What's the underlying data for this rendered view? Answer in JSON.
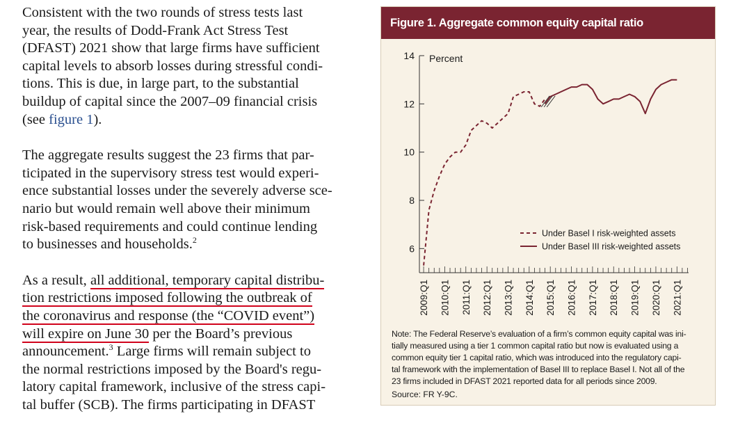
{
  "body_text": {
    "p1": [
      "Consistent with the two rounds of stress tests last",
      "year, the results of Dodd-Frank Act Stress Test",
      "(DFAST) 2021 show that large firms have sufficient",
      "capital levels to absorb losses during stressful condi-",
      "tions. This is due, in large part, to the substantial",
      "buildup of capital since the 2007–09 financial crisis"
    ],
    "p1_last_pre": "(see ",
    "p1_link": "figure 1",
    "p1_last_post": ").",
    "p2": [
      "The aggregate results suggest the 23 firms that par-",
      "ticipated in the supervisory stress test would experi-",
      "ence substantial losses under the severely adverse sce-",
      "nario but would remain well above their minimum",
      "risk-based requirements and could continue lending"
    ],
    "p2_last": "to businesses and households.",
    "p2_footnote": "2",
    "p3_l1_pre": "As a result, ",
    "p3_l1_ul": "all additional, temporary capital distribu-",
    "p3_l2_ul": "tion restrictions imposed following the outbreak of",
    "p3_l3_ul": "the coronavirus and response (the “COVID event”)",
    "p3_l4_ul": "will expire on June 30",
    "p3_l4_post": " per the Board’s previous",
    "p3_l5_pre": "announcement.",
    "p3_footnote": "3",
    "p3_l5_post": " Large firms will remain subject to",
    "p3_rest": [
      "the normal restrictions imposed by the Board's regu-",
      "latory capital framework, inclusive of the stress capi-",
      "tal buffer (SCB). The firms participating in DFAST"
    ]
  },
  "figure": {
    "title": "Figure 1. Aggregate common equity capital ratio",
    "note_lines": [
      "Note: The Federal Reserve’s evaluation of a firm’s common equity capital was ini-",
      "tially measured using a tier 1 common capital ratio but now is evaluated using a",
      "common equity tier 1 capital ratio, which was introduced into the regulatory capi-",
      "tal framework with the implementation of Basel III to replace Basel I. Not all of the",
      "23 firms included in DFAST 2021 reported data for all periods since 2009."
    ],
    "source": "Source: FR Y-9C."
  },
  "colors": {
    "title_bar": "#7a2431",
    "series_line": "#7a2431",
    "figure_bg": "#f8f2e6",
    "underline": "#d0021b",
    "link": "#2a4f8f"
  },
  "chart_data": {
    "type": "line",
    "title": "Figure 1. Aggregate common equity capital ratio",
    "ylabel": "Percent",
    "ylim": [
      5,
      14
    ],
    "yticks": [
      6,
      8,
      10,
      12,
      14
    ],
    "xticks": [
      "2009:Q1",
      "2010:Q1",
      "2011:Q1",
      "2012:Q1",
      "2013:Q1",
      "2014:Q1",
      "2015:Q1",
      "2016:Q1",
      "2017:Q1",
      "2018:Q1",
      "2019:Q1",
      "2020:Q1",
      "2021:Q1"
    ],
    "legend_position": "bottom-right",
    "series": [
      {
        "name": "Under Basel I risk-weighted assets",
        "style": "dashed",
        "x": [
          2009.0,
          2009.25,
          2009.5,
          2009.75,
          2010.0,
          2010.25,
          2010.5,
          2010.75,
          2011.0,
          2011.25,
          2011.5,
          2011.75,
          2012.0,
          2012.25,
          2012.5,
          2012.75,
          2013.0,
          2013.25,
          2013.5,
          2013.75,
          2014.0,
          2014.25,
          2014.5,
          2014.75
        ],
        "values": [
          5.3,
          7.6,
          8.4,
          9.0,
          9.5,
          9.8,
          10.0,
          10.0,
          10.3,
          10.9,
          11.1,
          11.3,
          11.2,
          11.0,
          11.2,
          11.4,
          11.6,
          12.3,
          12.4,
          12.5,
          12.5,
          12.0,
          11.9,
          12.2
        ]
      },
      {
        "name": "Under Basel III risk-weighted assets",
        "style": "solid",
        "x": [
          2014.75,
          2015.0,
          2015.25,
          2015.5,
          2015.75,
          2016.0,
          2016.25,
          2016.5,
          2016.75,
          2017.0,
          2017.25,
          2017.5,
          2017.75,
          2018.0,
          2018.25,
          2018.5,
          2018.75,
          2019.0,
          2019.25,
          2019.5,
          2019.75,
          2020.0,
          2020.25,
          2020.5,
          2020.75,
          2021.0
        ],
        "values": [
          12.0,
          12.3,
          12.4,
          12.5,
          12.6,
          12.7,
          12.7,
          12.8,
          12.8,
          12.6,
          12.2,
          12.0,
          12.1,
          12.2,
          12.2,
          12.3,
          12.4,
          12.3,
          12.1,
          11.6,
          12.2,
          12.6,
          12.8,
          12.9,
          13.0,
          13.0
        ]
      }
    ]
  }
}
